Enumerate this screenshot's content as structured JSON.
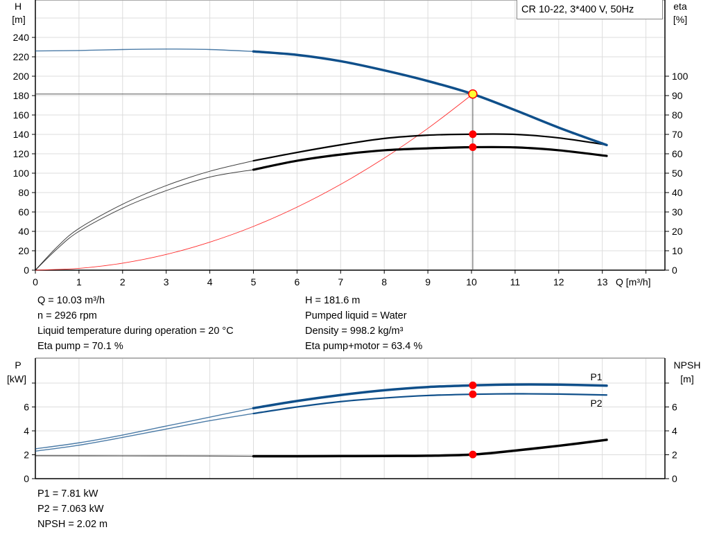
{
  "legend_title": "CR 10-22, 3*400 V, 50Hz",
  "colors": {
    "head": "#0f4f8a",
    "power": "#0f4f8a",
    "efficiency": "#000000",
    "npsh": "#000000",
    "system": "#ff2a2a",
    "duty_point": "#ff0000",
    "duty_head_fill": "#ffff33",
    "grid": "#dcdcdc"
  },
  "chart_data": [
    {
      "type": "line",
      "xlabel": "Q [m³/h]",
      "ylabel_left": [
        "H",
        "[m]"
      ],
      "ylabel_right": [
        "eta",
        "[%]"
      ],
      "xlim": [
        0,
        14.4
      ],
      "ylim_left": [
        0,
        260
      ],
      "ylim_right": [
        0,
        130
      ],
      "xticks": [
        "0",
        "1",
        "2",
        "3",
        "4",
        "5",
        "6",
        "7",
        "8",
        "9",
        "10",
        "11",
        "12",
        "13"
      ],
      "yticks_left": [
        "0",
        "20",
        "40",
        "60",
        "80",
        "100",
        "120",
        "140",
        "160",
        "180",
        "200",
        "220",
        "240"
      ],
      "yticks_right": [
        "0",
        "10",
        "20",
        "30",
        "40",
        "50",
        "60",
        "70",
        "80",
        "90",
        "100"
      ],
      "grid": true,
      "operating_range_start_q": 5,
      "duty_point": {
        "q": 10.03,
        "h": 181.6,
        "eta_pump": 70.1,
        "eta_pump_motor": 63.4
      },
      "series": [
        {
          "key": "H",
          "axis": "left",
          "points": [
            [
              0,
              226
            ],
            [
              1,
              226.5
            ],
            [
              2,
              227.5
            ],
            [
              3,
              228
            ],
            [
              4,
              227.5
            ],
            [
              5,
              225.5
            ],
            [
              6,
              222
            ],
            [
              7,
              215.5
            ],
            [
              8,
              206
            ],
            [
              9,
              195
            ],
            [
              10,
              182
            ],
            [
              11,
              165
            ],
            [
              12,
              147
            ],
            [
              13.1,
              129
            ]
          ]
        },
        {
          "key": "eta_pump",
          "axis": "right",
          "points": [
            [
              0,
              0
            ],
            [
              0.5,
              12
            ],
            [
              1,
              21.5
            ],
            [
              2,
              34
            ],
            [
              3,
              43.6
            ],
            [
              4,
              51
            ],
            [
              5,
              56.4
            ],
            [
              6,
              60.7
            ],
            [
              7,
              64.6
            ],
            [
              8,
              67.9
            ],
            [
              9,
              69.6
            ],
            [
              10,
              70.1
            ],
            [
              11,
              70
            ],
            [
              12,
              68.2
            ],
            [
              13.1,
              64.6
            ]
          ]
        },
        {
          "key": "eta_pump_motor",
          "axis": "right",
          "points": [
            [
              0,
              0
            ],
            [
              0.5,
              11
            ],
            [
              1,
              20
            ],
            [
              2,
              32
            ],
            [
              3,
              41
            ],
            [
              4,
              48
            ],
            [
              5,
              51.8
            ],
            [
              6,
              56.4
            ],
            [
              7,
              59.6
            ],
            [
              8,
              61.8
            ],
            [
              9,
              62.8
            ],
            [
              10,
              63.4
            ],
            [
              11,
              63.3
            ],
            [
              12,
              61.8
            ],
            [
              13.1,
              58.9
            ]
          ]
        },
        {
          "key": "system_curve",
          "axis": "left",
          "points": [
            [
              0,
              0
            ],
            [
              1,
              1.8
            ],
            [
              2,
              7.2
            ],
            [
              3,
              16.2
            ],
            [
              4,
              28.9
            ],
            [
              5,
              45.1
            ],
            [
              6,
              65
            ],
            [
              7,
              88.5
            ],
            [
              8,
              115.5
            ],
            [
              9,
              146.2
            ],
            [
              10.03,
              181.6
            ]
          ]
        }
      ]
    },
    {
      "type": "line",
      "xlim": [
        0,
        14.4
      ],
      "ylabel_left": [
        "P",
        "[kW]"
      ],
      "ylabel_right": [
        "NPSH",
        "[m]"
      ],
      "ylim_left": [
        0,
        10
      ],
      "ylim_right": [
        0,
        10
      ],
      "yticks_left": [
        "0",
        "2",
        "4",
        "6"
      ],
      "yticks_right": [
        "0",
        "2",
        "4",
        "6"
      ],
      "grid": true,
      "operating_range_start_q": 5,
      "duty_point": {
        "q": 10.03,
        "p1": 7.81,
        "p2": 7.063,
        "npsh": 2.02
      },
      "series": [
        {
          "key": "P1",
          "name": "P1",
          "axis": "left",
          "points": [
            [
              0,
              2.5
            ],
            [
              1,
              3.0
            ],
            [
              2,
              3.65
            ],
            [
              3,
              4.4
            ],
            [
              4,
              5.15
            ],
            [
              5,
              5.9
            ],
            [
              6,
              6.5
            ],
            [
              7,
              7.0
            ],
            [
              8,
              7.4
            ],
            [
              9,
              7.67
            ],
            [
              10.03,
              7.81
            ],
            [
              11,
              7.88
            ],
            [
              12,
              7.87
            ],
            [
              13.1,
              7.78
            ]
          ]
        },
        {
          "key": "P2",
          "name": "P2",
          "axis": "left",
          "points": [
            [
              0,
              2.3
            ],
            [
              1,
              2.8
            ],
            [
              2,
              3.45
            ],
            [
              3,
              4.15
            ],
            [
              4,
              4.85
            ],
            [
              5,
              5.45
            ],
            [
              6,
              6.0
            ],
            [
              7,
              6.45
            ],
            [
              8,
              6.75
            ],
            [
              9,
              6.96
            ],
            [
              10.03,
              7.063
            ],
            [
              11,
              7.1
            ],
            [
              12,
              7.08
            ],
            [
              13.1,
              7.0
            ]
          ]
        },
        {
          "key": "NPSH",
          "axis": "right",
          "points": [
            [
              0,
              1.92
            ],
            [
              2,
              1.91
            ],
            [
              4,
              1.9
            ],
            [
              5,
              1.88
            ],
            [
              6,
              1.88
            ],
            [
              7,
              1.89
            ],
            [
              8,
              1.9
            ],
            [
              9,
              1.92
            ],
            [
              10.03,
              2.02
            ],
            [
              11,
              2.35
            ],
            [
              12,
              2.75
            ],
            [
              13.1,
              3.25
            ]
          ]
        }
      ]
    }
  ],
  "info_top": {
    "left": [
      "Q = 10.03 m³/h",
      "n = 2926 rpm",
      "Liquid temperature during operation = 20 °C",
      "Eta pump = 70.1 %"
    ],
    "right": [
      "H = 181.6 m",
      "Pumped liquid = Water",
      "Density = 998.2 kg/m³",
      "Eta pump+motor = 63.4 %"
    ]
  },
  "info_bottom": [
    "P1 = 7.81 kW",
    "P2 = 7.063 kW",
    "NPSH = 2.02 m"
  ]
}
